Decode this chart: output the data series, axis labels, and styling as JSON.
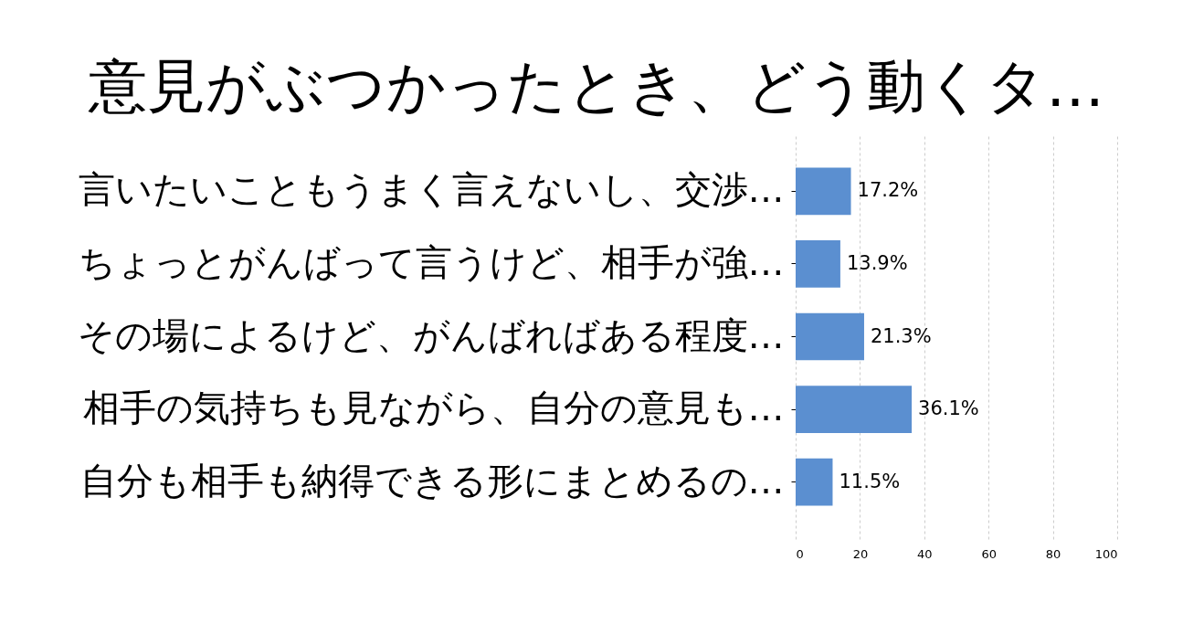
{
  "chart_data": {
    "type": "bar",
    "orientation": "horizontal",
    "title": "意見がぶつかったとき、どう動くタ…",
    "categories": [
      "言いたいこともうまく言えないし、交渉…",
      "ちょっとがんばって言うけど、相手が強…",
      "その場によるけど、がんばればある程度…",
      "相手の気持ちも見ながら、自分の意見も…",
      "自分も相手も納得できる形にまとめるの…"
    ],
    "values": [
      17.2,
      13.9,
      21.3,
      36.1,
      11.5
    ],
    "value_labels": [
      "17.2%",
      "13.9%",
      "21.3%",
      "36.1%",
      "11.5%"
    ],
    "color": "#5b8fd0",
    "xlim": [
      0,
      100
    ],
    "xticks": [
      0,
      20,
      40,
      60,
      80,
      100
    ],
    "grid": "x"
  }
}
